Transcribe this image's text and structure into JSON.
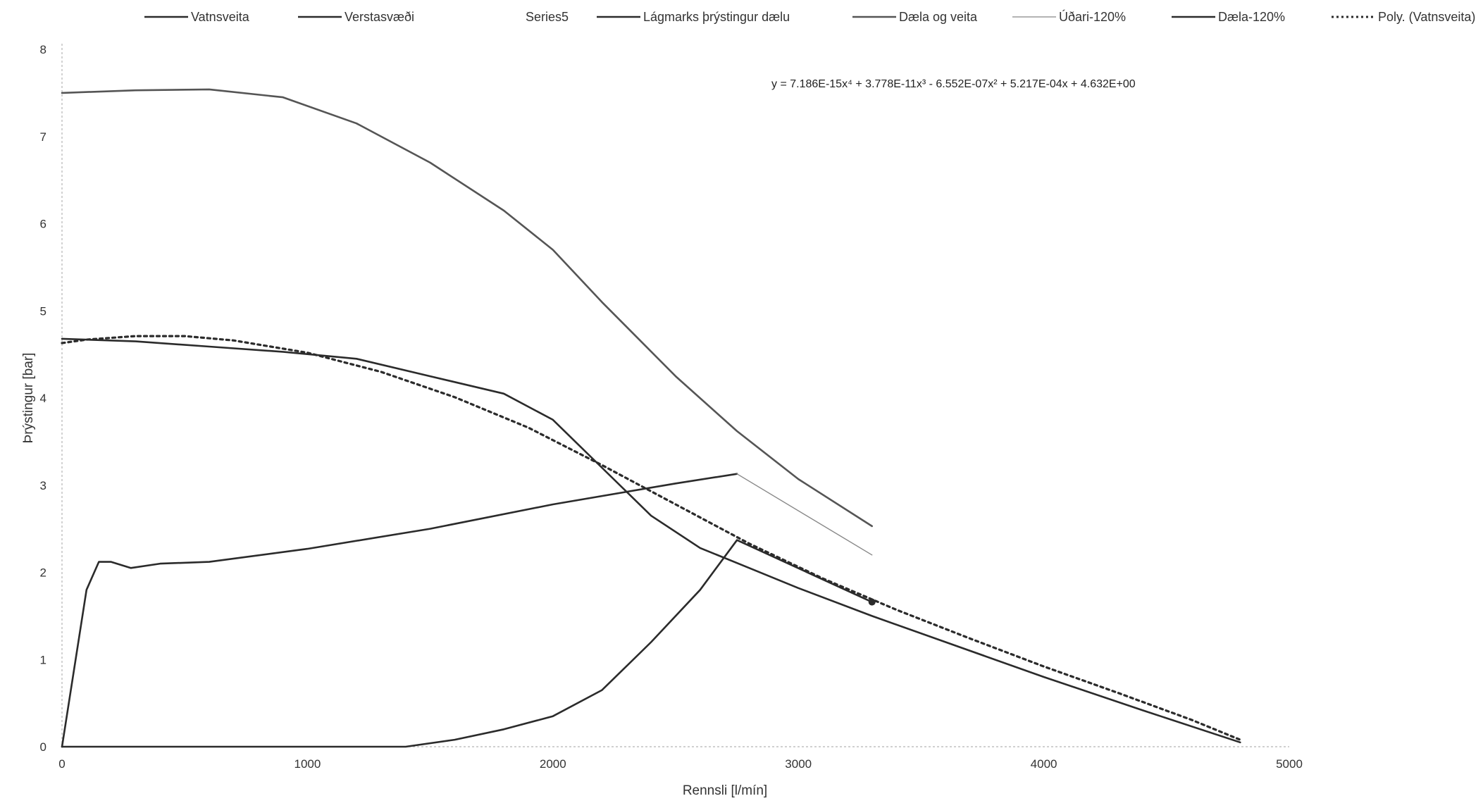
{
  "chart_data": {
    "type": "line",
    "title": "",
    "xlabel": "Rennsli [l/mín]",
    "ylabel": "Þrýstingur [bar]",
    "xlim": [
      0,
      5000
    ],
    "ylim": [
      0,
      8
    ],
    "x_ticks": [
      "0",
      "1000",
      "2000",
      "3000",
      "4000",
      "5000"
    ],
    "y_ticks": [
      "0",
      "1",
      "2",
      "3",
      "4",
      "5",
      "6",
      "7",
      "8"
    ],
    "legend_position": "top",
    "grid": false,
    "trendline_equation": "y = 7.186E-15x⁴ + 3.778E-11x³ - 6.552E-07x² + 5.217E-04x + 4.632E+00",
    "series": [
      {
        "name": "Vatnsveita",
        "color": "#2b2b2b",
        "dash": "solid",
        "points": [
          [
            0,
            4.68
          ],
          [
            300,
            4.65
          ],
          [
            600,
            4.59
          ],
          [
            900,
            4.53
          ],
          [
            1200,
            4.45
          ],
          [
            1500,
            4.25
          ],
          [
            1800,
            4.05
          ],
          [
            2000,
            3.75
          ],
          [
            2200,
            3.2
          ],
          [
            2400,
            2.65
          ],
          [
            2600,
            2.28
          ],
          [
            2800,
            2.05
          ],
          [
            3000,
            1.82
          ],
          [
            3300,
            1.5
          ],
          [
            3600,
            1.2
          ],
          [
            4000,
            0.8
          ],
          [
            4400,
            0.42
          ],
          [
            4800,
            0.05
          ]
        ]
      },
      {
        "name": "Verstasvæði",
        "color": "#2b2b2b",
        "dash": "solid",
        "points": [
          [
            0,
            0
          ],
          [
            1400,
            0
          ],
          [
            1600,
            0.08
          ],
          [
            1800,
            0.2
          ],
          [
            2000,
            0.35
          ],
          [
            2200,
            0.65
          ],
          [
            2400,
            1.2
          ],
          [
            2600,
            1.8
          ],
          [
            2750,
            2.37
          ]
        ]
      },
      {
        "name": "Series5",
        "color": "#2b2b2b",
        "dash": "solid",
        "points": []
      },
      {
        "name": "Lágmarks þrýstingur dælu",
        "color": "#2b2b2b",
        "dash": "solid",
        "points": [
          [
            0,
            0
          ],
          [
            100,
            1.8
          ],
          [
            150,
            2.12
          ],
          [
            200,
            2.12
          ],
          [
            280,
            2.05
          ],
          [
            400,
            2.1
          ],
          [
            600,
            2.12
          ],
          [
            1000,
            2.27
          ],
          [
            1500,
            2.5
          ],
          [
            2000,
            2.78
          ],
          [
            2500,
            3.02
          ],
          [
            2750,
            3.13
          ]
        ]
      },
      {
        "name": "Dæla og veita",
        "color": "#555555",
        "dash": "solid",
        "points": [
          [
            0,
            7.5
          ],
          [
            300,
            7.53
          ],
          [
            600,
            7.54
          ],
          [
            900,
            7.45
          ],
          [
            1200,
            7.15
          ],
          [
            1500,
            6.7
          ],
          [
            1800,
            6.15
          ],
          [
            2000,
            5.7
          ],
          [
            2200,
            5.1
          ],
          [
            2500,
            4.25
          ],
          [
            2750,
            3.62
          ],
          [
            3000,
            3.07
          ],
          [
            3300,
            2.53
          ]
        ]
      },
      {
        "name": "Úðari-120%",
        "color": "#888888",
        "dash": "thin",
        "points": [
          [
            2750,
            3.13
          ],
          [
            3300,
            2.2
          ]
        ]
      },
      {
        "name": "Dæla-120%",
        "color": "#2b2b2b",
        "dash": "solid",
        "points": [
          [
            2750,
            2.37
          ],
          [
            3300,
            1.66
          ]
        ]
      },
      {
        "name": "Poly. (Vatnsveita)",
        "color": "#2b2b2b",
        "dash": "dotted",
        "points": [
          [
            0,
            4.63
          ],
          [
            100,
            4.67
          ],
          [
            300,
            4.71
          ],
          [
            500,
            4.71
          ],
          [
            700,
            4.66
          ],
          [
            1000,
            4.52
          ],
          [
            1300,
            4.3
          ],
          [
            1600,
            4.01
          ],
          [
            1900,
            3.66
          ],
          [
            2200,
            3.23
          ],
          [
            2500,
            2.78
          ],
          [
            2800,
            2.33
          ],
          [
            3100,
            1.93
          ],
          [
            3400,
            1.57
          ],
          [
            3700,
            1.24
          ],
          [
            4000,
            0.92
          ],
          [
            4300,
            0.62
          ],
          [
            4600,
            0.31
          ],
          [
            4800,
            0.08
          ]
        ]
      }
    ]
  }
}
